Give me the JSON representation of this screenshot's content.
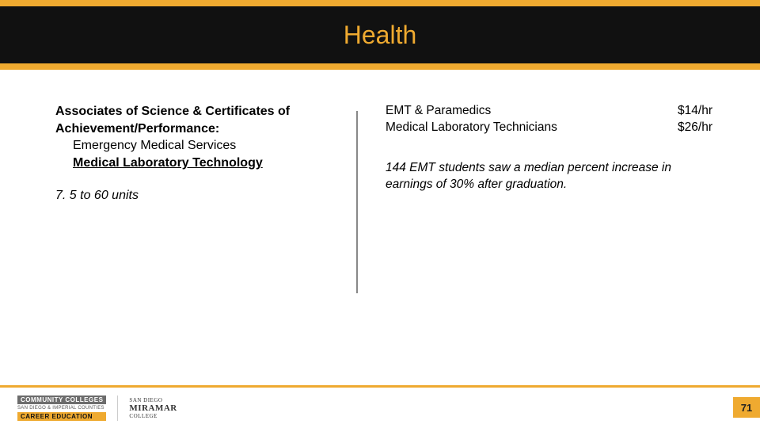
{
  "colors": {
    "accent": "#efaa30",
    "title_band_bg": "#111111",
    "divider": "#888888",
    "footer_line": "#efaa30"
  },
  "title": "Health",
  "left": {
    "heading": "Associates of Science & Certificates of Achievement/Performance:",
    "program1": "Emergency Medical Services",
    "program2": "Medical Laboratory Technology",
    "units": "7. 5 to 60 units"
  },
  "right": {
    "careers": [
      {
        "name": "EMT & Paramedics",
        "wage": "$14/hr"
      },
      {
        "name": "Medical Laboratory Technicians",
        "wage": "$26/hr"
      }
    ],
    "note": "144 EMT students saw a median percent increase in earnings of 30% after graduation."
  },
  "footer": {
    "logo1_line1": "COMMUNITY COLLEGES",
    "logo1_line2": "SAN DIEGO & IMPERIAL COUNTIES",
    "logo1_line3": "CAREER EDUCATION",
    "logo2_line1": "SAN DIEGO",
    "logo2_line2": "MIRAMAR",
    "logo2_line3": "COLLEGE"
  },
  "page_number": "71"
}
